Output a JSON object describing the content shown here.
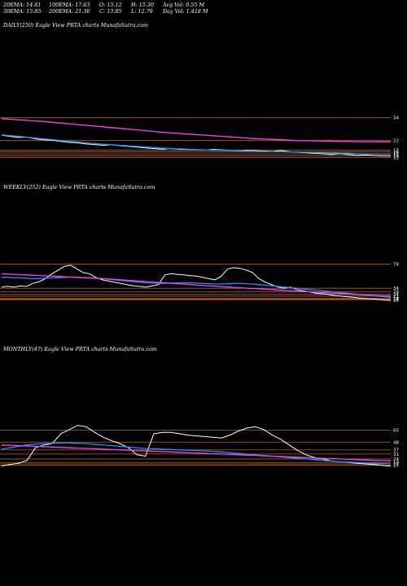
{
  "header": {
    "ema20": "20EMA: 14.81",
    "ema30": "30EMA: 15.85",
    "ema100": "100EMA: 17.63",
    "ema200": "200EMA: 21.36",
    "open": "O: 15.12",
    "close": "C: 13.85",
    "high": "H: 15.30",
    "low": "L: 12.79",
    "avg_vol": "Avg Vol: 0.55 M",
    "day_vol": "Day Vol: 1.418  M"
  },
  "colors": {
    "background": "#000000",
    "price": "#ffffff",
    "ema_short": "#1e90ff",
    "ema_long": "#ff3cff",
    "levels": "#b8621a",
    "axis_text": "#ffffff"
  },
  "chart_data": [
    {
      "type": "line",
      "title": "DAILY(250) Eagle   View  PRTA charts MunafaSutra.com",
      "price_axis_labels": [
        "34",
        "22",
        "17",
        "16",
        "15",
        "14",
        "13"
      ],
      "ylim": [
        12,
        36
      ],
      "series": [
        {
          "role": "price",
          "values": [
            24.8,
            24.2,
            23.6,
            23.8,
            22.9,
            22.4,
            22.1,
            21.6,
            21.0,
            20.8,
            20.2,
            19.9,
            19.5,
            19.8,
            19.3,
            18.9,
            18.5,
            18.1,
            17.8,
            17.5,
            17.9,
            17.4,
            17.2,
            17.0,
            16.9,
            17.3,
            17.1,
            16.8,
            16.6,
            16.9,
            16.7,
            16.5,
            16.3,
            16.7,
            16.2,
            15.8,
            15.6,
            15.3,
            15.0,
            14.7,
            15.1,
            14.6,
            14.2,
            14.5,
            14.1,
            13.9,
            13.85
          ]
        },
        {
          "role": "ema_short",
          "values": [
            25.0,
            24.6,
            24.2,
            23.8,
            23.3,
            22.9,
            22.5,
            22.0,
            21.6,
            21.2,
            20.8,
            20.4,
            20.1,
            19.8,
            19.5,
            19.2,
            18.9,
            18.6,
            18.3,
            18.0,
            17.8,
            17.6,
            17.4,
            17.2,
            17.0,
            16.9,
            16.8,
            16.7,
            16.6,
            16.5,
            16.4,
            16.3,
            16.2,
            16.1,
            16.0,
            15.9,
            15.8,
            15.7,
            15.6,
            15.5,
            15.4,
            15.3,
            15.1,
            15.0,
            14.9,
            14.8,
            14.81
          ]
        },
        {
          "role": "ema_long",
          "values": [
            33.5,
            33.2,
            32.9,
            32.6,
            32.3,
            32.0,
            31.6,
            31.2,
            30.8,
            30.4,
            30.0,
            29.6,
            29.2,
            28.8,
            28.4,
            28.0,
            27.6,
            27.2,
            26.8,
            26.4,
            26.0,
            25.7,
            25.4,
            25.1,
            24.8,
            24.5,
            24.2,
            23.9,
            23.6,
            23.3,
            23.0,
            22.8,
            22.6,
            22.4,
            22.2,
            22.0,
            21.9,
            21.8,
            21.7,
            21.6,
            21.5,
            21.45,
            21.4,
            21.38,
            21.37,
            21.36,
            21.36
          ]
        }
      ]
    },
    {
      "type": "line",
      "title": "WEEKLY(252) Eagle   View  PRTA charts MunafaSutra.com",
      "price_axis_labels": [
        "74",
        "34",
        "28",
        "24",
        "21",
        "17",
        "16",
        "15"
      ],
      "ylim": [
        10,
        80
      ],
      "series": [
        {
          "role": "price",
          "values": [
            36,
            37,
            36,
            38,
            37,
            42,
            45,
            50,
            58,
            64,
            70,
            72,
            66,
            60,
            58,
            52,
            48,
            46,
            44,
            42,
            40,
            38,
            37,
            36,
            38,
            40,
            56,
            58,
            57,
            56,
            55,
            54,
            52,
            50,
            48,
            54,
            66,
            68,
            67,
            64,
            60,
            50,
            44,
            40,
            36,
            34,
            36,
            32,
            30,
            28,
            26,
            25,
            24,
            22,
            21,
            20,
            19,
            18,
            17,
            16.5,
            15.5,
            14.5,
            13.85
          ]
        },
        {
          "role": "ema_short",
          "values": [
            52,
            52,
            51.5,
            51,
            50.5,
            50,
            50,
            50.5,
            51,
            51.5,
            52,
            52.5,
            52,
            51.5,
            51,
            50.5,
            50,
            49,
            48,
            47,
            46,
            45,
            44,
            43,
            42.5,
            42,
            42,
            42.5,
            43,
            43,
            43,
            42.5,
            42,
            41.5,
            41,
            41,
            41.5,
            42,
            42,
            41.5,
            41,
            40,
            39,
            38,
            37,
            36,
            35,
            34,
            33,
            32,
            31,
            30,
            29,
            28,
            27,
            26,
            25,
            24,
            23,
            22,
            21,
            20,
            19
          ]
        },
        {
          "role": "ema_long",
          "values": [
            58,
            57.5,
            57,
            56.5,
            56,
            55.5,
            55,
            54.5,
            54,
            53.5,
            53,
            52.5,
            52,
            51.5,
            51,
            50.5,
            50,
            49.3,
            48.6,
            47.9,
            47.2,
            46.5,
            45.8,
            45.1,
            44.4,
            43.7,
            43,
            42.3,
            41.6,
            40.9,
            40.2,
            39.5,
            38.8,
            38.1,
            37.4,
            36.7,
            36,
            35.4,
            34.8,
            34.2,
            33.6,
            33,
            32.4,
            31.8,
            31.2,
            30.6,
            30,
            29.4,
            28.8,
            28.2,
            27.6,
            27,
            26.4,
            25.8,
            25.2,
            24.6,
            24,
            23.4,
            22.8,
            22.2,
            21.9,
            21.6,
            21.36
          ]
        }
      ]
    },
    {
      "type": "line",
      "title": "MONTHLY(47) Eagle   View  PRTA charts MunafaSutra.com",
      "price_axis_labels": [
        "65",
        "48",
        "37",
        "31",
        "24",
        "19",
        "17",
        "15"
      ],
      "ylim": [
        10,
        75
      ],
      "series": [
        {
          "role": "price",
          "values": [
            14,
            16,
            18,
            22,
            40,
            44,
            46,
            60,
            66,
            72,
            70,
            62,
            55,
            50,
            46,
            40,
            30,
            28,
            60,
            62,
            62,
            60,
            58,
            57,
            56,
            55,
            54,
            58,
            64,
            68,
            70,
            66,
            58,
            52,
            44,
            36,
            30,
            26,
            24,
            21,
            20,
            19,
            18,
            17,
            16,
            15,
            13.85
          ]
        },
        {
          "role": "ema_short",
          "values": [
            38,
            40,
            42,
            44,
            45,
            46,
            46.5,
            47,
            47,
            46.5,
            46,
            45,
            44,
            43,
            42,
            41,
            40,
            39,
            38.5,
            38,
            37.5,
            37,
            36.5,
            36,
            35.5,
            35,
            34,
            33,
            32,
            31,
            30,
            29,
            28,
            27,
            26,
            25,
            24,
            23,
            22,
            21,
            20,
            19.5,
            19,
            18.5,
            18,
            17.5,
            17
          ]
        },
        {
          "role": "ema_long",
          "values": [
            44,
            43.5,
            43,
            42.5,
            42,
            41.5,
            41,
            40.5,
            40,
            39.5,
            39,
            38.5,
            38,
            37.5,
            37,
            36.5,
            36,
            35.5,
            35,
            34.5,
            34,
            33.5,
            33,
            32.5,
            32,
            31.5,
            31,
            30.5,
            30,
            29.5,
            29,
            28.5,
            28,
            27.5,
            27,
            26.5,
            26,
            25.5,
            25,
            24.5,
            24,
            23.5,
            23,
            22.5,
            22,
            21.7,
            21.36
          ]
        }
      ]
    }
  ]
}
